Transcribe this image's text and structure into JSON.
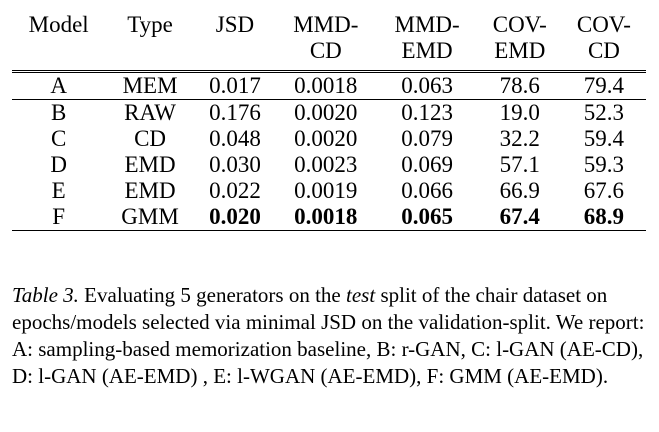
{
  "table": {
    "headers": [
      [
        "Model"
      ],
      [
        "Type"
      ],
      [
        "JSD"
      ],
      [
        "MMD-",
        "CD"
      ],
      [
        "MMD-",
        "EMD"
      ],
      [
        "COV-",
        "EMD"
      ],
      [
        "COV-",
        "CD"
      ]
    ],
    "rows": [
      [
        "A",
        "MEM",
        "0.017",
        "0.0018",
        "0.063",
        "78.6",
        "79.4"
      ],
      [
        "B",
        "RAW",
        "0.176",
        "0.0020",
        "0.123",
        "19.0",
        "52.3"
      ],
      [
        "C",
        "CD",
        "0.048",
        "0.0020",
        "0.079",
        "32.2",
        "59.4"
      ],
      [
        "D",
        "EMD",
        "0.030",
        "0.0023",
        "0.069",
        "57.1",
        "59.3"
      ],
      [
        "E",
        "EMD",
        "0.022",
        "0.0019",
        "0.066",
        "66.9",
        "67.6"
      ],
      [
        "F",
        "GMM",
        "0.020",
        "0.0018",
        "0.065",
        "67.4",
        "68.9"
      ]
    ]
  },
  "caption": {
    "label": "Table 3.",
    "text_1": " Evaluating 5 generators on the ",
    "emph": "test",
    "text_2": " split of the chair dataset on epochs/models selected via minimal JSD on the validation-split. We report: A: sampling-based memorization baseline, B: r-GAN, C: l-GAN (AE-CD), D: l-GAN (AE-EMD) , E: l-WGAN (AE-EMD), F: GMM (AE-EMD)."
  }
}
